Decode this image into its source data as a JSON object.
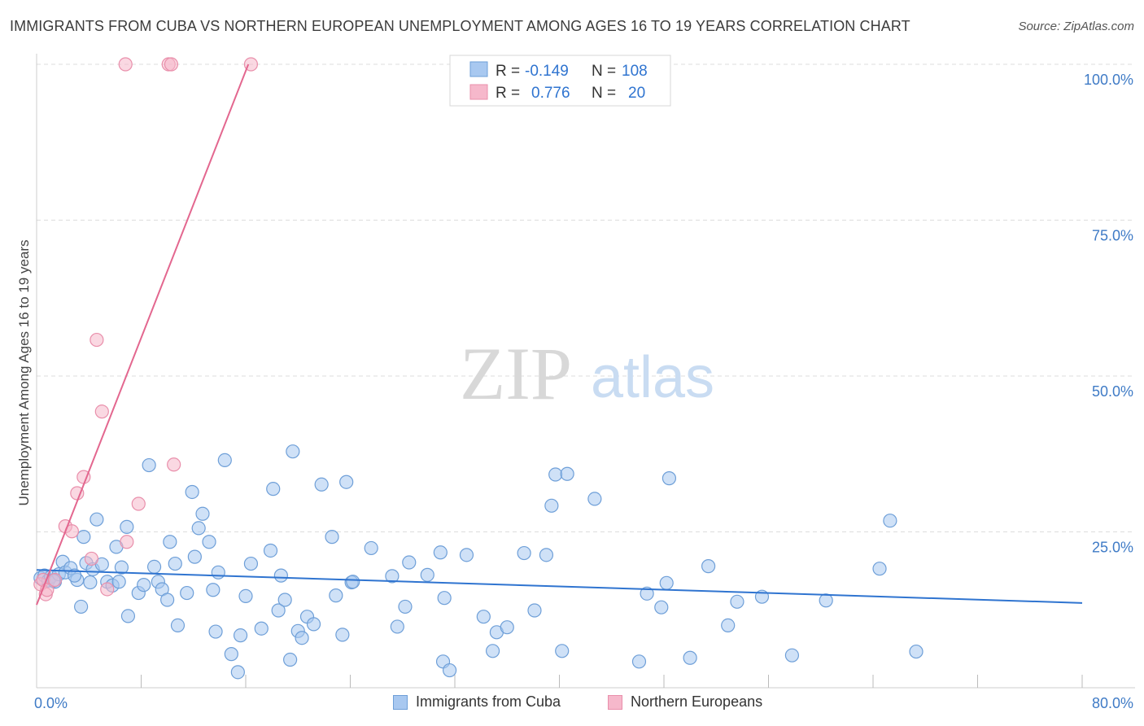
{
  "title": "IMMIGRANTS FROM CUBA VS NORTHERN EUROPEAN UNEMPLOYMENT AMONG AGES 16 TO 19 YEARS CORRELATION CHART",
  "source": "Source: ZipAtlas.com",
  "watermark": {
    "zip": "ZIP",
    "atlas": "atlas"
  },
  "colors": {
    "blue_fill": "#a8c8f0",
    "blue_stroke": "#6e9fd8",
    "blue_line": "#2f74d0",
    "pink_fill": "#f6b8cb",
    "pink_stroke": "#e98fab",
    "pink_line": "#e3678f",
    "axis_text": "#3f7bc6",
    "grid": "#dddddd"
  },
  "legend": {
    "rows": [
      {
        "r_label": "R =",
        "r_value": "-0.149",
        "n_label": "N =",
        "n_value": "108",
        "series": "blue"
      },
      {
        "r_label": "R =",
        "r_value": "0.776",
        "n_label": "N =",
        "n_value": "20",
        "series": "pink"
      }
    ]
  },
  "bottom_legend": [
    {
      "label": "Immigrants from Cuba",
      "series": "blue"
    },
    {
      "label": "Northern Europeans",
      "series": "pink"
    }
  ],
  "chart_data": {
    "type": "scatter",
    "title": "IMMIGRANTS FROM CUBA VS NORTHERN EUROPEAN UNEMPLOYMENT AMONG AGES 16 TO 19 YEARS CORRELATION CHART",
    "xlabel": "",
    "ylabel": "Unemployment Among Ages 16 to 19 years",
    "xlim": [
      0,
      80
    ],
    "ylim": [
      0,
      100
    ],
    "x_tick_labels": [
      {
        "value": 0,
        "label": "0.0%"
      },
      {
        "value": 80,
        "label": "80.0%"
      }
    ],
    "y_tick_labels": [
      {
        "value": 25,
        "label": "25.0%"
      },
      {
        "value": 50,
        "label": "50.0%"
      },
      {
        "value": 75,
        "label": "75.0%"
      },
      {
        "value": 100,
        "label": "100.0%"
      }
    ],
    "grid": true,
    "series": [
      {
        "name": "Immigrants from Cuba",
        "color": "#a8c8f0",
        "trendline": {
          "x": [
            0,
            80
          ],
          "y": [
            18.9,
            13.6
          ]
        },
        "points": [
          [
            0.3,
            17.6
          ],
          [
            0.6,
            18.0
          ],
          [
            0.9,
            17.2
          ],
          [
            1.1,
            17.8
          ],
          [
            1.4,
            17.0
          ],
          [
            1.7,
            18.2
          ],
          [
            2.0,
            20.2
          ],
          [
            2.2,
            18.5
          ],
          [
            2.6,
            19.2
          ],
          [
            3.1,
            17.3
          ],
          [
            3.4,
            13.0
          ],
          [
            3.8,
            20.0
          ],
          [
            3.6,
            24.2
          ],
          [
            4.1,
            16.9
          ],
          [
            4.6,
            27.0
          ],
          [
            4.3,
            19.0
          ],
          [
            5.0,
            19.8
          ],
          [
            5.4,
            17.0
          ],
          [
            5.8,
            16.4
          ],
          [
            6.1,
            22.6
          ],
          [
            6.5,
            19.3
          ],
          [
            6.9,
            25.8
          ],
          [
            7.0,
            11.5
          ],
          [
            7.8,
            15.2
          ],
          [
            8.2,
            16.5
          ],
          [
            8.6,
            35.7
          ],
          [
            9.0,
            19.4
          ],
          [
            9.3,
            17.0
          ],
          [
            9.6,
            15.8
          ],
          [
            10.0,
            14.1
          ],
          [
            10.2,
            23.4
          ],
          [
            10.6,
            19.9
          ],
          [
            10.8,
            10.0
          ],
          [
            11.5,
            15.2
          ],
          [
            11.9,
            31.4
          ],
          [
            12.1,
            21.0
          ],
          [
            12.4,
            25.6
          ],
          [
            12.7,
            27.9
          ],
          [
            13.2,
            23.4
          ],
          [
            13.5,
            15.7
          ],
          [
            13.7,
            9.0
          ],
          [
            13.9,
            18.5
          ],
          [
            14.4,
            36.5
          ],
          [
            14.9,
            5.4
          ],
          [
            15.4,
            2.5
          ],
          [
            15.6,
            8.4
          ],
          [
            16.0,
            14.7
          ],
          [
            16.4,
            19.9
          ],
          [
            17.2,
            9.5
          ],
          [
            17.9,
            22.0
          ],
          [
            18.1,
            31.9
          ],
          [
            18.5,
            12.4
          ],
          [
            18.7,
            18.0
          ],
          [
            19.0,
            14.1
          ],
          [
            19.4,
            4.5
          ],
          [
            19.6,
            37.9
          ],
          [
            20.0,
            9.1
          ],
          [
            20.3,
            8.0
          ],
          [
            20.7,
            11.4
          ],
          [
            21.2,
            10.2
          ],
          [
            21.8,
            32.6
          ],
          [
            22.6,
            24.2
          ],
          [
            22.9,
            14.8
          ],
          [
            23.4,
            8.5
          ],
          [
            23.7,
            33.0
          ],
          [
            24.1,
            16.9
          ],
          [
            25.6,
            22.4
          ],
          [
            27.2,
            17.9
          ],
          [
            27.6,
            9.8
          ],
          [
            28.2,
            13.0
          ],
          [
            28.5,
            20.1
          ],
          [
            29.9,
            18.1
          ],
          [
            30.9,
            21.7
          ],
          [
            31.1,
            4.2
          ],
          [
            31.2,
            14.4
          ],
          [
            31.6,
            2.8
          ],
          [
            32.9,
            21.3
          ],
          [
            34.2,
            11.4
          ],
          [
            34.9,
            5.9
          ],
          [
            35.2,
            8.9
          ],
          [
            36.0,
            9.7
          ],
          [
            37.3,
            21.6
          ],
          [
            38.1,
            12.4
          ],
          [
            39.0,
            21.3
          ],
          [
            39.4,
            29.2
          ],
          [
            39.7,
            34.2
          ],
          [
            40.2,
            5.9
          ],
          [
            40.6,
            34.3
          ],
          [
            42.7,
            30.3
          ],
          [
            46.1,
            4.2
          ],
          [
            46.7,
            15.1
          ],
          [
            47.8,
            12.9
          ],
          [
            48.2,
            16.8
          ],
          [
            48.4,
            33.6
          ],
          [
            50.0,
            4.8
          ],
          [
            51.4,
            19.5
          ],
          [
            52.9,
            10.0
          ],
          [
            53.6,
            13.8
          ],
          [
            55.5,
            14.6
          ],
          [
            57.8,
            5.2
          ],
          [
            60.4,
            14.0
          ],
          [
            64.5,
            19.1
          ],
          [
            65.3,
            26.8
          ],
          [
            67.3,
            5.8
          ],
          [
            1.3,
            17.2
          ],
          [
            2.9,
            18.0
          ],
          [
            6.3,
            17.0
          ],
          [
            24.2,
            17.0
          ]
        ]
      },
      {
        "name": "Northern Europeans",
        "color": "#f6b8cb",
        "trendline": {
          "x": [
            0,
            16.2
          ],
          "y": [
            13.3,
            100
          ]
        },
        "points": [
          [
            0.3,
            16.6
          ],
          [
            0.5,
            17.3
          ],
          [
            0.7,
            15.0
          ],
          [
            0.8,
            15.7
          ],
          [
            1.4,
            17.3
          ],
          [
            2.2,
            25.9
          ],
          [
            2.7,
            25.1
          ],
          [
            3.1,
            31.2
          ],
          [
            3.6,
            33.8
          ],
          [
            4.2,
            20.7
          ],
          [
            4.6,
            55.8
          ],
          [
            5.0,
            44.3
          ],
          [
            5.4,
            15.8
          ],
          [
            6.9,
            23.4
          ],
          [
            7.8,
            29.5
          ],
          [
            10.5,
            35.8
          ],
          [
            6.8,
            100
          ],
          [
            10.1,
            100
          ],
          [
            10.3,
            100
          ],
          [
            16.4,
            100
          ]
        ]
      }
    ]
  }
}
